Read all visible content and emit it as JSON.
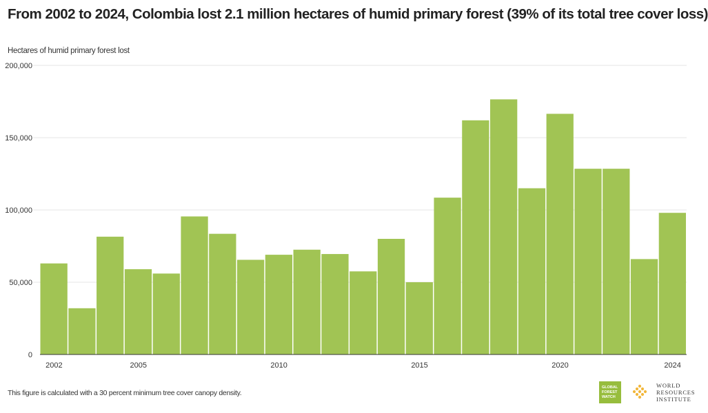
{
  "header": {
    "title": "From 2002 to 2024, Colombia lost 2.1 million hectares of humid primary forest (39% of its total tree cover loss)"
  },
  "footer": {
    "note": "This figure is calculated with a 30 percent minimum tree cover canopy density.",
    "gfw_logo_lines": [
      "GLOBAL",
      "FOREST",
      "WATCH"
    ],
    "wri_logo_lines": [
      "WORLD",
      "RESOURCES",
      "INSTITUTE"
    ]
  },
  "colors": {
    "bar": "#a1c454",
    "gridline": "#e6e6e6",
    "baseline": "#333333",
    "gfw_logo": "#97bd3d",
    "wri_logo": "#f2b73c"
  },
  "chart_data": {
    "type": "bar",
    "title": "From 2002 to 2024, Colombia lost 2.1 million hectares of humid primary forest (39% of its total tree cover loss)",
    "ylabel": "Hectares of humid primary forest lost",
    "xlabel": "",
    "ylim": [
      0,
      200000
    ],
    "yticks": [
      0,
      50000,
      100000,
      150000,
      200000
    ],
    "ytick_labels": [
      "0",
      "50,000",
      "100,000",
      "150,000",
      "200,000"
    ],
    "xtick_labels": [
      "2002",
      "2005",
      "2010",
      "2015",
      "2020",
      "2024"
    ],
    "grid": true,
    "categories": [
      2002,
      2003,
      2004,
      2005,
      2006,
      2007,
      2008,
      2009,
      2010,
      2011,
      2012,
      2013,
      2014,
      2015,
      2016,
      2017,
      2018,
      2019,
      2020,
      2021,
      2022,
      2023,
      2024
    ],
    "values": [
      63000,
      32000,
      81500,
      59000,
      56000,
      95500,
      83500,
      65500,
      69000,
      72500,
      69500,
      57500,
      80000,
      50000,
      108500,
      162000,
      176500,
      115000,
      166500,
      128500,
      128500,
      66000,
      98000
    ]
  }
}
